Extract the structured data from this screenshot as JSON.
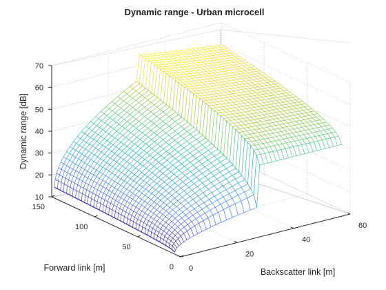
{
  "chart_data": {
    "type": "surface",
    "title": "Dynamic range - Urban microcell",
    "xlabel": "Backscatter link [m]",
    "ylabel": "Forward link [m]",
    "zlabel": "Dynamic range [dB]",
    "xlim": [
      0,
      60
    ],
    "ylim": [
      0,
      150
    ],
    "zlim": [
      10,
      70
    ],
    "xticks": [
      "0",
      "20",
      "40",
      "60"
    ],
    "yticks": [
      "0",
      "50",
      "100",
      "150"
    ],
    "zticks": [
      "10",
      "20",
      "30",
      "40",
      "50",
      "60",
      "70"
    ],
    "grid": true,
    "colormap": [
      "#3e26a8",
      "#4868fb",
      "#2a9ee0",
      "#1bbab0",
      "#4fc97b",
      "#a6c73a",
      "#f2d93a",
      "#f9fb15"
    ],
    "description_points": [
      {
        "backscatter_m": 1,
        "forward_m": 10,
        "dynamic_range_db": 10
      },
      {
        "backscatter_m": 1,
        "forward_m": 150,
        "dynamic_range_db": 14
      },
      {
        "backscatter_m": 30,
        "forward_m": 150,
        "dynamic_range_db": 53
      },
      {
        "backscatter_m": 30,
        "forward_m": 10,
        "dynamic_range_db": 21
      },
      {
        "backscatter_m": 31,
        "forward_m": 150,
        "dynamic_range_db": 65
      },
      {
        "backscatter_m": 60,
        "forward_m": 150,
        "dynamic_range_db": 60
      },
      {
        "backscatter_m": 60,
        "forward_m": 10,
        "dynamic_range_db": 40
      }
    ]
  }
}
